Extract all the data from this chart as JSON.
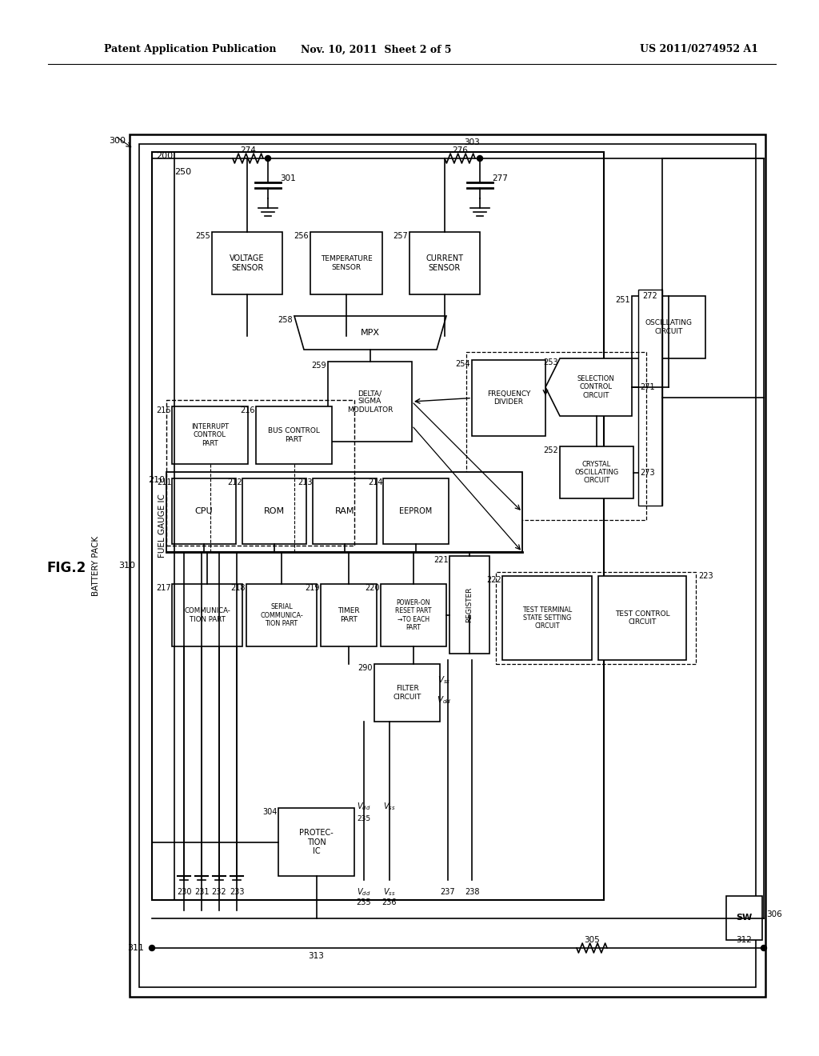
{
  "bg": "#ffffff",
  "header_left": "Patent Application Publication",
  "header_mid": "Nov. 10, 2011  Sheet 2 of 5",
  "header_right": "US 2011/0274952 A1",
  "fig_label": "FIG.2"
}
